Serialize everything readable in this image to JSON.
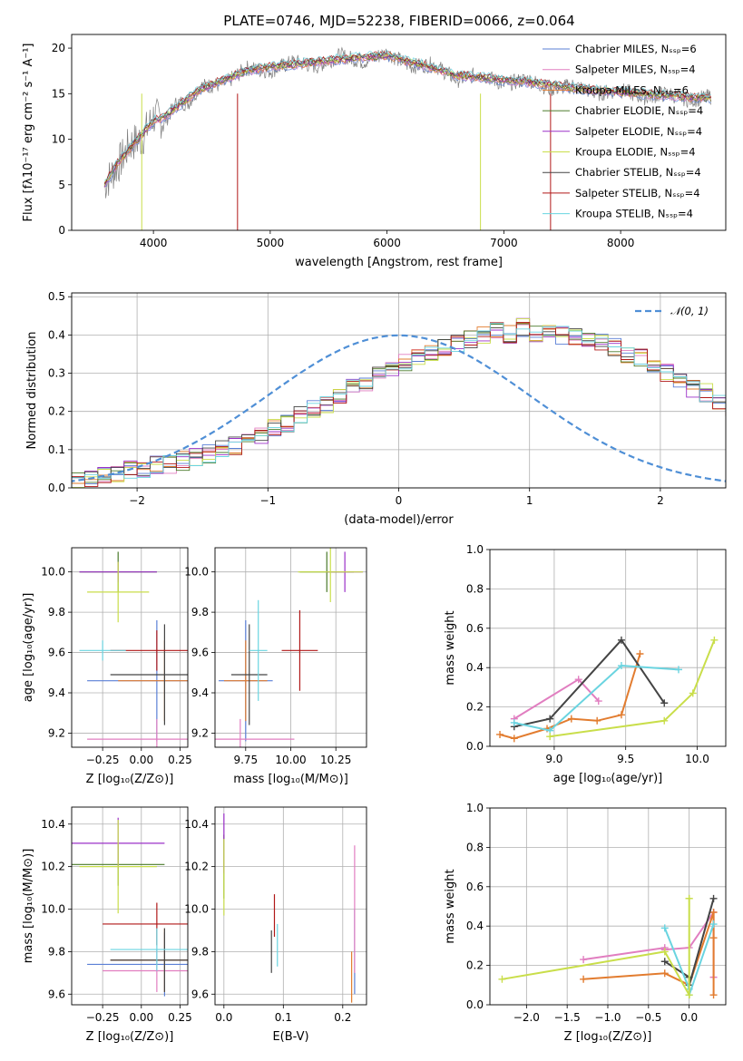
{
  "colors": {
    "Chabrier MILES": "#5a7fd6",
    "Salpeter MILES": "#e17ec0",
    "Kroupa MILES": "#e27c2f",
    "Chabrier ELODIE": "#4a7a2a",
    "Salpeter ELODIE": "#9b30c8",
    "Kroupa ELODIE": "#c9de4a",
    "Chabrier STELIB": "#444444",
    "Salpeter STELIB": "#b01818",
    "Kroupa STELIB": "#6ad4e0",
    "data": "#7f7f7f",
    "gaussian": "#4f8fd6"
  },
  "chart_data": [
    {
      "type": "line",
      "title": "PLATE=0746, MJD=52238, FIBERID=0066, z=0.064",
      "xlabel": "wavelength [Angstrom, rest frame]",
      "ylabel": "Flux [fλ10⁻¹⁷ erg cm⁻² s⁻¹ A⁻¹]",
      "xlim": [
        3300,
        8900
      ],
      "ylim": [
        0,
        21.5
      ],
      "xticks": [
        "4000",
        "5000",
        "6000",
        "7000",
        "8000"
      ],
      "yticks": [
        "0",
        "5",
        "10",
        "15",
        "20"
      ],
      "legend_position": "top-right",
      "legend": [
        "Chabrier MILES, Nₛₛₚ=6",
        "Salpeter MILES, Nₛₛₚ=4",
        "Kroupa MILES, Nₛₛₚ=6",
        "Chabrier ELODIE, Nₛₛₚ=4",
        "Salpeter ELODIE, Nₛₛₚ=4",
        "Kroupa ELODIE, Nₛₛₚ=4",
        "Chabrier STELIB, Nₛₛₚ=4",
        "Salpeter STELIB, Nₛₛₚ=4",
        "Kroupa STELIB, Nₛₛₚ=4"
      ],
      "x": [
        3580,
        3700,
        3800,
        3900,
        4000,
        4100,
        4200,
        4300,
        4400,
        4600,
        4800,
        5000,
        5200,
        5400,
        5600,
        5800,
        6000,
        6200,
        6400,
        6600,
        6800,
        7000,
        7200,
        7400,
        7600,
        7800,
        8000,
        8200,
        8400,
        8600,
        8780
      ],
      "series": [
        {
          "name": "model",
          "values": [
            5,
            7.5,
            9,
            10.5,
            12,
            12.5,
            13.5,
            14.5,
            15.5,
            16.5,
            17.5,
            18,
            18.2,
            18.5,
            18.8,
            19,
            19.2,
            18.5,
            17.8,
            17,
            16.8,
            16.5,
            16.3,
            16,
            15.6,
            15.4,
            15.2,
            15,
            14.8,
            14.6,
            14.5
          ]
        },
        {
          "name": "data",
          "values": [
            5,
            7.2,
            9.5,
            10,
            12.5,
            12,
            14,
            14,
            15.8,
            16,
            17.8,
            17.5,
            18.5,
            18,
            19.2,
            18.5,
            19.5,
            18,
            18.2,
            16.5,
            17.2,
            16,
            16.6,
            15.5,
            15.9,
            15,
            15.4,
            14.6,
            15,
            14.3,
            14.7
          ]
        }
      ]
    },
    {
      "type": "bar",
      "xlabel": "(data-model)/error",
      "ylabel": "Normed distribution",
      "xlim": [
        -2.5,
        2.5
      ],
      "ylim": [
        0,
        0.51
      ],
      "xticks": [
        "−2",
        "−1",
        "0",
        "1",
        "2"
      ],
      "yticks": [
        "0.0",
        "0.1",
        "0.2",
        "0.3",
        "0.4",
        "0.5"
      ],
      "legend_position": "top-right",
      "legend": [
        "𝒩(0, 1)"
      ],
      "bin_width": 0.1,
      "bin_start": -2.5,
      "series": [
        {
          "name": "histogram",
          "values": [
            0.02,
            0.025,
            0.03,
            0.04,
            0.05,
            0.05,
            0.06,
            0.06,
            0.07,
            0.08,
            0.09,
            0.1,
            0.11,
            0.12,
            0.14,
            0.16,
            0.17,
            0.19,
            0.21,
            0.22,
            0.24,
            0.26,
            0.27,
            0.3,
            0.31,
            0.33,
            0.34,
            0.35,
            0.37,
            0.38,
            0.39,
            0.4,
            0.41,
            0.4,
            0.42,
            0.4,
            0.41,
            0.4,
            0.4,
            0.39,
            0.38,
            0.37,
            0.35,
            0.34,
            0.32,
            0.3,
            0.28,
            0.26,
            0.25,
            0.23,
            0.21,
            0.19,
            0.17,
            0.15,
            0.14,
            0.12,
            0.1,
            0.09,
            0.08,
            0.07,
            0.06,
            0.05,
            0.05,
            0.04,
            0.04,
            0.03,
            0.03,
            0.025,
            0.02,
            0.02,
            0.02,
            0.02,
            0.02,
            0.02,
            0.02
          ]
        }
      ]
    },
    {
      "type": "scatter",
      "xlabel": "Z [log₁₀(Z/Z⊙)]",
      "ylabel": "age  [log₁₀(age/yr)]",
      "xlim": [
        -0.45,
        0.3
      ],
      "ylim": [
        9.13,
        10.12
      ],
      "xticks": [
        "−0.25",
        "0.00",
        "0.25"
      ],
      "yticks": [
        "9.2",
        "9.4",
        "9.6",
        "9.8",
        "10.0"
      ],
      "points": [
        {
          "series": "Chabrier MILES",
          "x": 0.1,
          "y": 9.46,
          "xerr": 0.45,
          "yerr": 0.3
        },
        {
          "series": "Salpeter MILES",
          "x": 0.1,
          "y": 9.17,
          "xerr": 0.45,
          "yerr": 0.1
        },
        {
          "series": "Kroupa MILES",
          "x": 0.15,
          "y": 9.46,
          "xerr": 0.3,
          "yerr": 0.2
        },
        {
          "series": "Chabrier ELODIE",
          "x": -0.15,
          "y": 10.0,
          "xerr": 0.25,
          "yerr": 0.1
        },
        {
          "series": "Salpeter ELODIE",
          "x": -0.15,
          "y": 10.0,
          "xerr": 0.25,
          "yerr": 0.05
        },
        {
          "series": "Kroupa ELODIE",
          "x": -0.15,
          "y": 9.9,
          "xerr": 0.2,
          "yerr": 0.15
        },
        {
          "series": "Chabrier STELIB",
          "x": 0.15,
          "y": 9.49,
          "xerr": 0.35,
          "yerr": 0.25
        },
        {
          "series": "Salpeter STELIB",
          "x": 0.1,
          "y": 9.61,
          "xerr": 0.3,
          "yerr": 0.1
        },
        {
          "series": "Kroupa STELIB",
          "x": -0.25,
          "y": 9.61,
          "xerr": 0.15,
          "yerr": 0.05
        }
      ]
    },
    {
      "type": "scatter",
      "xlabel": "mass [log₁₀(M/M⊙)]",
      "ylabel": "",
      "xlim": [
        9.58,
        10.42
      ],
      "ylim": [
        9.13,
        10.12
      ],
      "xticks": [
        "9.75",
        "10.00",
        "10.25"
      ],
      "yticks": [
        "9.2",
        "9.4",
        "9.6",
        "9.8",
        "10.0"
      ],
      "points": [
        {
          "series": "Chabrier MILES",
          "x": 9.75,
          "y": 9.46,
          "xerr": 0.15,
          "yerr": 0.3
        },
        {
          "series": "Salpeter MILES",
          "x": 9.72,
          "y": 9.17,
          "xerr": 0.3,
          "yerr": 0.1
        },
        {
          "series": "Kroupa MILES",
          "x": 9.75,
          "y": 9.46,
          "xerr": 0.12,
          "yerr": 0.2
        },
        {
          "series": "Chabrier ELODIE",
          "x": 10.2,
          "y": 10.0,
          "xerr": 0.15,
          "yerr": 0.1
        },
        {
          "series": "Salpeter ELODIE",
          "x": 10.3,
          "y": 10.0,
          "xerr": 0.1,
          "yerr": 0.1
        },
        {
          "series": "Kroupa ELODIE",
          "x": 10.22,
          "y": 10.0,
          "xerr": 0.18,
          "yerr": 0.15
        },
        {
          "series": "Chabrier STELIB",
          "x": 9.77,
          "y": 9.49,
          "xerr": 0.1,
          "yerr": 0.25
        },
        {
          "series": "Salpeter STELIB",
          "x": 10.05,
          "y": 9.61,
          "xerr": 0.1,
          "yerr": 0.2
        },
        {
          "series": "Kroupa STELIB",
          "x": 9.82,
          "y": 9.61,
          "xerr": 0.05,
          "yerr": 0.25
        }
      ]
    },
    {
      "type": "line",
      "xlabel": "age  [log₁₀(age/yr)]",
      "ylabel": "mass weight",
      "xlim": [
        8.55,
        10.2
      ],
      "ylim": [
        0,
        1.0
      ],
      "xticks": [
        "9.0",
        "9.5",
        "10.0"
      ],
      "yticks": [
        "0.0",
        "0.2",
        "0.4",
        "0.6",
        "0.8",
        "1.0"
      ],
      "series": [
        {
          "name": "Salpeter MILES",
          "x": [
            8.72,
            9.17,
            9.31
          ],
          "y": [
            0.14,
            0.34,
            0.23
          ]
        },
        {
          "name": "Kroupa MILES",
          "x": [
            8.62,
            8.72,
            8.95,
            9.12,
            9.3,
            9.47,
            9.6
          ],
          "y": [
            0.06,
            0.04,
            0.09,
            0.14,
            0.13,
            0.16,
            0.47
          ]
        },
        {
          "name": "Chabrier STELIB",
          "x": [
            8.72,
            8.97,
            9.47,
            9.77
          ],
          "y": [
            0.1,
            0.14,
            0.54,
            0.22
          ]
        },
        {
          "name": "Kroupa STELIB",
          "x": [
            8.72,
            8.97,
            9.47,
            9.87
          ],
          "y": [
            0.12,
            0.08,
            0.41,
            0.39
          ]
        },
        {
          "name": "Kroupa ELODIE",
          "x": [
            8.97,
            9.77,
            9.97,
            10.12
          ],
          "y": [
            0.05,
            0.13,
            0.27,
            0.54
          ]
        }
      ]
    },
    {
      "type": "scatter",
      "xlabel": "Z [log₁₀(Z/Z⊙)]",
      "ylabel": "mass [log₁₀(M/M⊙)]",
      "xlim": [
        -0.45,
        0.3
      ],
      "ylim": [
        9.55,
        10.48
      ],
      "xticks": [
        "−0.25",
        "0.00",
        "0.25"
      ],
      "yticks": [
        "9.6",
        "9.8",
        "10.0",
        "10.2",
        "10.4"
      ],
      "points": [
        {
          "series": "Chabrier MILES",
          "x": 0.15,
          "y": 9.74,
          "xerr": 0.5,
          "yerr": 0.15
        },
        {
          "series": "Salpeter MILES",
          "x": 0.1,
          "y": 9.71,
          "xerr": 0.35,
          "yerr": 0.1
        },
        {
          "series": "Kroupa MILES",
          "x": 0.15,
          "y": 9.76,
          "xerr": 0.35,
          "yerr": 0.15
        },
        {
          "series": "Chabrier ELODIE",
          "x": -0.15,
          "y": 10.21,
          "xerr": 0.3,
          "yerr": 0.1
        },
        {
          "series": "Salpeter ELODIE",
          "x": -0.15,
          "y": 10.31,
          "xerr": 0.3,
          "yerr": 0.12
        },
        {
          "series": "Kroupa ELODIE",
          "x": -0.15,
          "y": 10.2,
          "xerr": 0.25,
          "yerr": 0.22
        },
        {
          "series": "Chabrier STELIB",
          "x": 0.15,
          "y": 9.76,
          "xerr": 0.35,
          "yerr": 0.15
        },
        {
          "series": "Salpeter STELIB",
          "x": 0.1,
          "y": 9.93,
          "xerr": 0.35,
          "yerr": 0.1
        },
        {
          "series": "Kroupa STELIB",
          "x": 0.1,
          "y": 9.81,
          "xerr": 0.3,
          "yerr": 0.1
        }
      ]
    },
    {
      "type": "scatter",
      "xlabel": "E(B-V)",
      "ylabel": "",
      "xlim": [
        -0.015,
        0.24
      ],
      "ylim": [
        9.55,
        10.48
      ],
      "xticks": [
        "0.0",
        "0.1",
        "0.2"
      ],
      "yticks": [
        "9.6",
        "9.8",
        "10.0",
        "10.2",
        "10.4"
      ],
      "points": [
        {
          "series": "Chabrier MILES",
          "x": 0.22,
          "y": 9.8,
          "yerr": 0.2
        },
        {
          "series": "Salpeter MILES",
          "x": 0.22,
          "y": 10.0,
          "yerr": 0.3
        },
        {
          "series": "Kroupa MILES",
          "x": 0.215,
          "y": 9.68,
          "yerr": 0.12
        },
        {
          "series": "Chabrier ELODIE",
          "x": 0.0,
          "y": 10.2,
          "yerr": 0.15
        },
        {
          "series": "Salpeter ELODIE",
          "x": 0.0,
          "y": 10.31,
          "yerr": 0.14
        },
        {
          "series": "Kroupa ELODIE",
          "x": 0.0,
          "y": 10.15,
          "yerr": 0.18
        },
        {
          "series": "Chabrier STELIB",
          "x": 0.08,
          "y": 9.8,
          "yerr": 0.1
        },
        {
          "series": "Salpeter STELIB",
          "x": 0.085,
          "y": 9.97,
          "yerr": 0.1
        },
        {
          "series": "Kroupa STELIB",
          "x": 0.09,
          "y": 9.83,
          "yerr": 0.1
        }
      ]
    },
    {
      "type": "line",
      "xlabel": "Z [log₁₀(Z/Z⊙)]",
      "ylabel": "mass weight",
      "xlim": [
        -2.45,
        0.45
      ],
      "ylim": [
        0,
        1.0
      ],
      "xticks": [
        "−2.0",
        "−1.5",
        "−1.0",
        "−0.5",
        "0.0"
      ],
      "yticks": [
        "0.0",
        "0.2",
        "0.4",
        "0.6",
        "0.8",
        "1.0"
      ],
      "series": [
        {
          "name": "Salpeter MILES",
          "x": [
            -1.3,
            -0.3,
            -0.3,
            0.0,
            0.3,
            0.3
          ],
          "y": [
            0.23,
            0.29,
            0.28,
            0.29,
            0.47,
            0.14
          ]
        },
        {
          "name": "Kroupa MILES",
          "x": [
            -1.3,
            -0.3,
            0.0,
            0.3,
            0.3,
            0.3
          ],
          "y": [
            0.13,
            0.16,
            0.1,
            0.47,
            0.34,
            0.05
          ]
        },
        {
          "name": "Chabrier STELIB",
          "x": [
            -0.3,
            0.0,
            0.0,
            0.3
          ],
          "y": [
            0.22,
            0.14,
            0.1,
            0.54
          ]
        },
        {
          "name": "Kroupa STELIB",
          "x": [
            -0.3,
            0.0,
            0.0,
            0.3
          ],
          "y": [
            0.39,
            0.08,
            0.05,
            0.41
          ]
        },
        {
          "name": "Kroupa ELODIE",
          "x": [
            -2.3,
            -0.3,
            0.0,
            0.0,
            0.0
          ],
          "y": [
            0.13,
            0.27,
            0.05,
            0.54,
            0.54
          ]
        }
      ]
    }
  ]
}
